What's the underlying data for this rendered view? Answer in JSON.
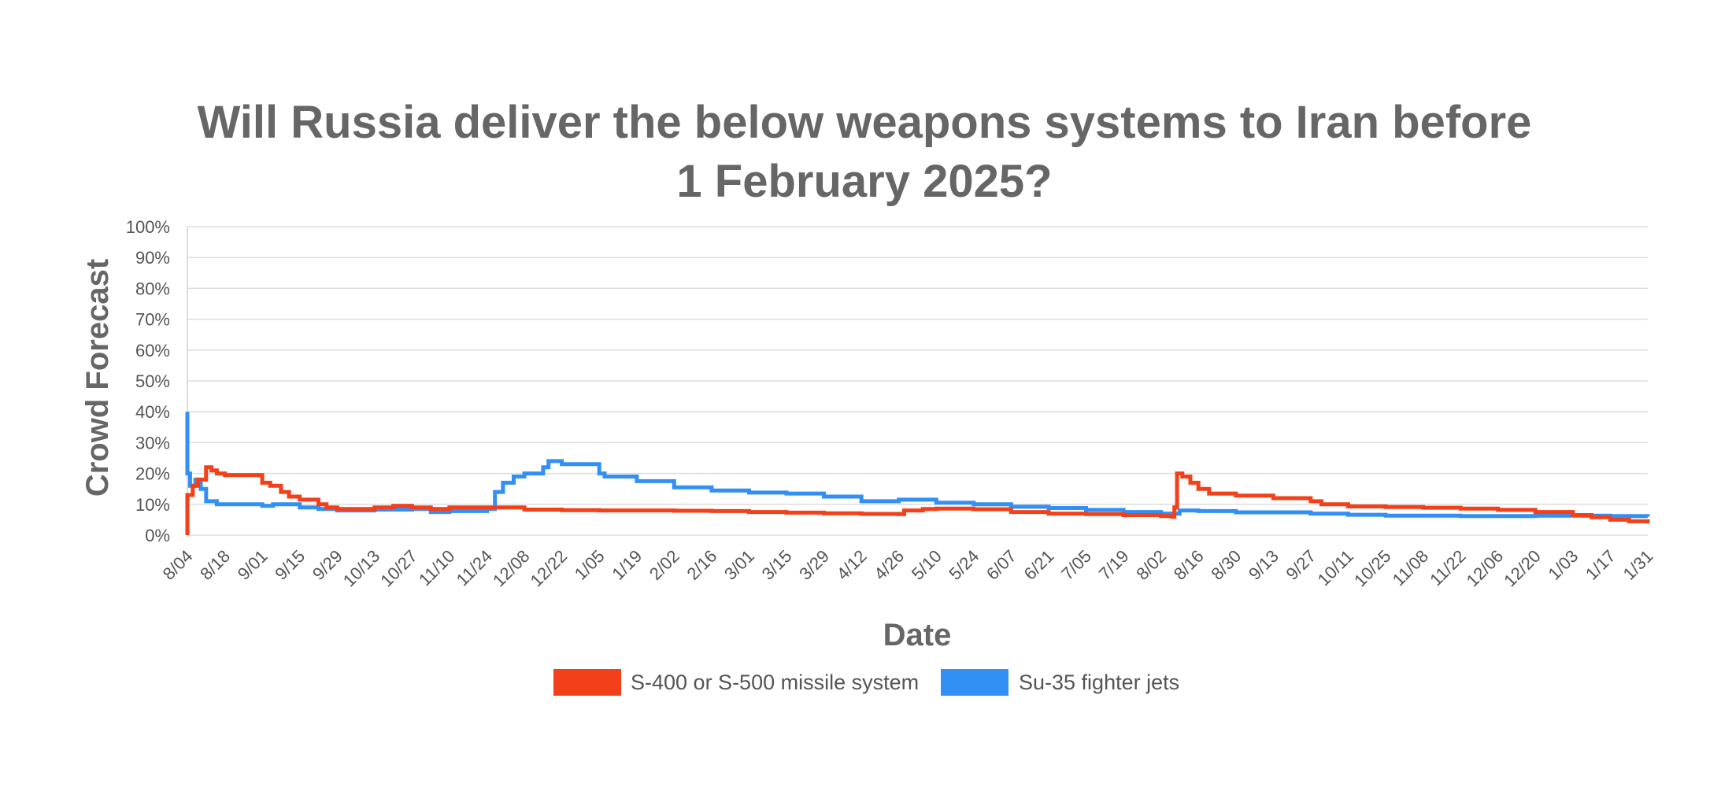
{
  "chart_data": {
    "type": "line",
    "title_lines": [
      "Will Russia deliver the below weapons systems to Iran before",
      "1 February 2025?"
    ],
    "xlabel": "Date",
    "ylabel": "Crowd Forecast",
    "y_ticks": [
      "0%",
      "10%",
      "20%",
      "30%",
      "40%",
      "50%",
      "60%",
      "70%",
      "80%",
      "90%",
      "100%"
    ],
    "ylim": [
      0,
      100
    ],
    "x_ticks": [
      "8/04",
      "8/18",
      "9/01",
      "9/15",
      "9/29",
      "10/13",
      "10/27",
      "11/10",
      "11/24",
      "12/08",
      "12/22",
      "1/05",
      "1/19",
      "2/02",
      "2/16",
      "3/01",
      "3/15",
      "3/29",
      "4/12",
      "4/26",
      "5/10",
      "5/24",
      "6/07",
      "6/21",
      "7/05",
      "7/19",
      "8/02",
      "8/16",
      "8/30",
      "9/13",
      "9/27",
      "10/11",
      "10/25",
      "11/08",
      "11/22",
      "12/06",
      "12/20",
      "1/03",
      "1/17",
      "1/31"
    ],
    "grid": true,
    "legend_position": "bottom",
    "series": [
      {
        "name": "S-400 or S-500 missile system",
        "color": "#f2401a",
        "points": [
          [
            "8/04",
            0
          ],
          [
            "8/04",
            13
          ],
          [
            "8/06",
            16
          ],
          [
            "8/08",
            18
          ],
          [
            "8/11",
            22
          ],
          [
            "8/13",
            21
          ],
          [
            "8/15",
            20
          ],
          [
            "8/18",
            19.5
          ],
          [
            "8/25",
            19.5
          ],
          [
            "9/01",
            17
          ],
          [
            "9/04",
            16
          ],
          [
            "9/08",
            14
          ],
          [
            "9/11",
            12.5
          ],
          [
            "9/15",
            11.5
          ],
          [
            "9/22",
            10
          ],
          [
            "9/25",
            9
          ],
          [
            "9/29",
            8.5
          ],
          [
            "10/13",
            9
          ],
          [
            "10/20",
            9.5
          ],
          [
            "10/27",
            9
          ],
          [
            "11/03",
            8.5
          ],
          [
            "11/10",
            9
          ],
          [
            "11/24",
            9
          ],
          [
            "12/08",
            8.3
          ],
          [
            "12/22",
            8.1
          ],
          [
            "1/05",
            8
          ],
          [
            "1/19",
            8
          ],
          [
            "2/02",
            7.9
          ],
          [
            "2/16",
            7.8
          ],
          [
            "3/01",
            7.5
          ],
          [
            "3/15",
            7.3
          ],
          [
            "3/29",
            7.1
          ],
          [
            "4/12",
            6.9
          ],
          [
            "4/26",
            6.8
          ],
          [
            "4/28",
            8
          ],
          [
            "5/05",
            8.5
          ],
          [
            "5/10",
            8.6
          ],
          [
            "5/24",
            8.4
          ],
          [
            "6/07",
            7.5
          ],
          [
            "6/21",
            7
          ],
          [
            "7/05",
            6.8
          ],
          [
            "7/19",
            6.5
          ],
          [
            "8/02",
            6.2
          ],
          [
            "8/06",
            6
          ],
          [
            "8/07",
            9
          ],
          [
            "8/08",
            20
          ],
          [
            "8/10",
            19
          ],
          [
            "8/13",
            17
          ],
          [
            "8/16",
            15
          ],
          [
            "8/20",
            13.5
          ],
          [
            "8/30",
            12.8
          ],
          [
            "9/13",
            12
          ],
          [
            "9/27",
            11
          ],
          [
            "10/01",
            10
          ],
          [
            "10/11",
            9.3
          ],
          [
            "10/25",
            9.1
          ],
          [
            "11/08",
            8.9
          ],
          [
            "11/22",
            8.6
          ],
          [
            "12/06",
            8.2
          ],
          [
            "12/20",
            7.5
          ],
          [
            "1/03",
            6.5
          ],
          [
            "1/10",
            5.8
          ],
          [
            "1/17",
            5
          ],
          [
            "1/24",
            4.5
          ],
          [
            "1/31",
            3.8
          ]
        ]
      },
      {
        "name": "Su-35 fighter jets",
        "color": "#3290f5",
        "points": [
          [
            "8/04",
            40
          ],
          [
            "8/04",
            20
          ],
          [
            "8/05",
            16
          ],
          [
            "8/07",
            18
          ],
          [
            "8/09",
            15
          ],
          [
            "8/11",
            11
          ],
          [
            "8/15",
            10
          ],
          [
            "8/18",
            10
          ],
          [
            "8/25",
            10
          ],
          [
            "9/01",
            9.5
          ],
          [
            "9/05",
            10
          ],
          [
            "9/15",
            9
          ],
          [
            "9/22",
            8.5
          ],
          [
            "9/29",
            8
          ],
          [
            "10/13",
            8.3
          ],
          [
            "10/27",
            8.5
          ],
          [
            "11/03",
            7.5
          ],
          [
            "11/10",
            7.8
          ],
          [
            "11/24",
            8.5
          ],
          [
            "11/26",
            8.5
          ],
          [
            "11/27",
            14
          ],
          [
            "11/30",
            17
          ],
          [
            "12/04",
            19
          ],
          [
            "12/08",
            20
          ],
          [
            "12/15",
            22
          ],
          [
            "12/17",
            24
          ],
          [
            "12/22",
            23
          ],
          [
            "1/05",
            20
          ],
          [
            "1/07",
            19
          ],
          [
            "1/19",
            17.5
          ],
          [
            "2/02",
            15.5
          ],
          [
            "2/16",
            14.5
          ],
          [
            "3/01",
            13.8
          ],
          [
            "3/15",
            13.5
          ],
          [
            "3/29",
            12.5
          ],
          [
            "4/12",
            11
          ],
          [
            "4/26",
            11.5
          ],
          [
            "5/10",
            10.5
          ],
          [
            "5/24",
            10
          ],
          [
            "6/07",
            9.2
          ],
          [
            "6/21",
            8.8
          ],
          [
            "7/05",
            8.2
          ],
          [
            "7/19",
            7.5
          ],
          [
            "8/02",
            7
          ],
          [
            "8/09",
            8
          ],
          [
            "8/16",
            7.8
          ],
          [
            "8/30",
            7.4
          ],
          [
            "9/13",
            7.4
          ],
          [
            "9/27",
            7
          ],
          [
            "10/11",
            6.6
          ],
          [
            "10/25",
            6.3
          ],
          [
            "11/08",
            6.3
          ],
          [
            "11/22",
            6.2
          ],
          [
            "12/06",
            6.2
          ],
          [
            "12/20",
            6.3
          ],
          [
            "1/03",
            6.3
          ],
          [
            "1/17",
            6.2
          ],
          [
            "1/31",
            6
          ]
        ]
      }
    ]
  }
}
